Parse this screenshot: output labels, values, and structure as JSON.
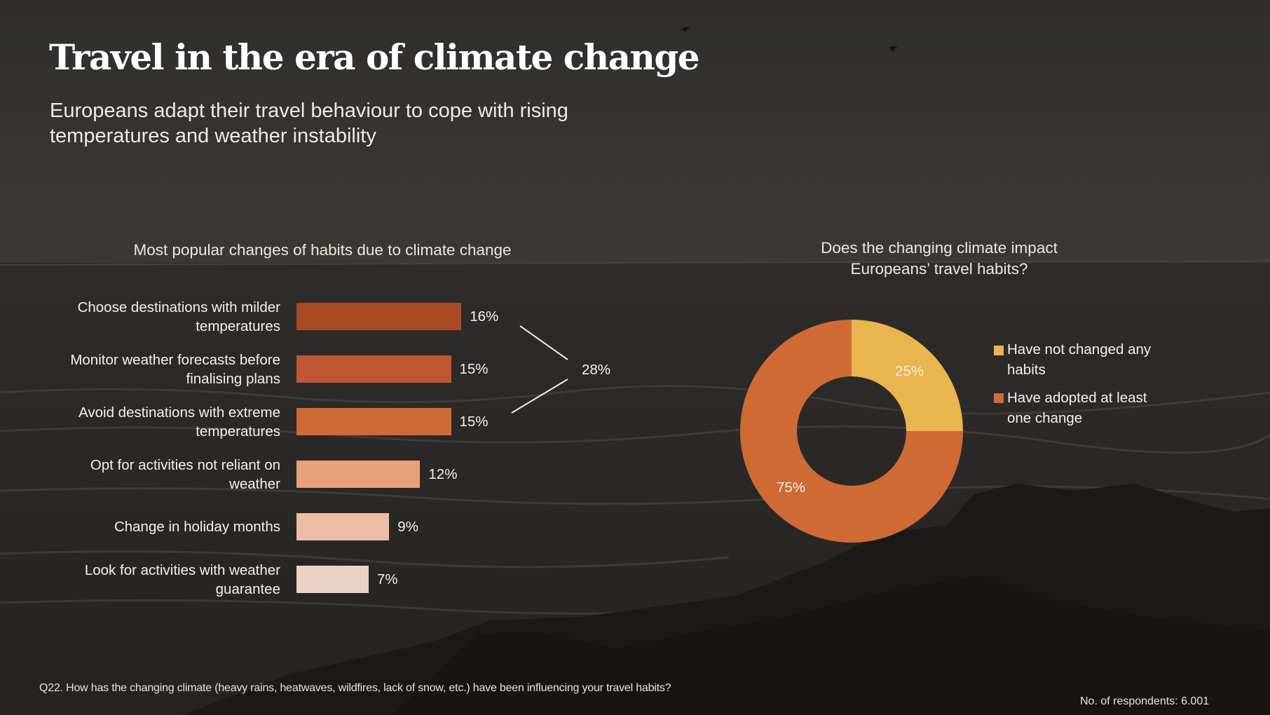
{
  "header": {
    "title": "Travel in the era of climate change",
    "subtitle": "Europeans adapt their travel behaviour to cope with rising temperatures and weather instability"
  },
  "colors": {
    "bars": [
      "#a94a24",
      "#bd5734",
      "#cf6a34",
      "#e9a07a",
      "#ecbca6",
      "#ecd2c6"
    ],
    "donut": [
      "#e9b54e",
      "#cf6a34"
    ],
    "bracket_line": "#f0ebe5"
  },
  "chart_data": [
    {
      "type": "bar",
      "orientation": "horizontal",
      "title": "Most popular changes of habits due to climate change",
      "categories": [
        "Choose destinations with milder temperatures",
        "Monitor weather forecasts before finalising plans",
        "Avoid destinations with extreme temperatures",
        "Opt for activities not reliant on weather",
        "Change in holiday months",
        "Look for activities with weather guarantee"
      ],
      "label_lines": [
        [
          "Choose destinations with milder",
          "temperatures"
        ],
        [
          "Monitor weather forecasts before",
          "finalising plans"
        ],
        [
          "Avoid destinations with extreme",
          "temperatures"
        ],
        [
          "Opt for activities not reliant on",
          "weather"
        ],
        [
          "Change in holiday months"
        ],
        [
          "Look for activities with weather",
          "guarantee"
        ]
      ],
      "values": [
        16,
        15,
        15,
        12,
        9,
        7
      ],
      "value_labels": [
        "16%",
        "15%",
        "15%",
        "12%",
        "9%",
        "7%"
      ],
      "unit": "%",
      "annotation": {
        "text": "28%",
        "spans_categories": [
          0,
          2
        ]
      }
    },
    {
      "type": "pie",
      "variant": "donut",
      "title": "Does the changing climate impact Europeans’ travel habits?",
      "title_lines": [
        "Does the changing climate impact",
        "Europeans’ travel habits?"
      ],
      "categories": [
        "Have not changed any habits",
        "Have adopted at least one change"
      ],
      "legend_lines": [
        [
          "Have not changed any",
          "habits"
        ],
        [
          "Have adopted at least",
          "one change"
        ]
      ],
      "values": [
        25,
        75
      ],
      "value_labels": [
        "25%",
        "75%"
      ],
      "legend_position": "right"
    }
  ],
  "footer": {
    "question": "Q22. How has the changing climate (heavy rains, heatwaves, wildfires, lack of snow, etc.) have been influencing your travel habits?",
    "respondents": "No. of respondents: 6.001"
  }
}
